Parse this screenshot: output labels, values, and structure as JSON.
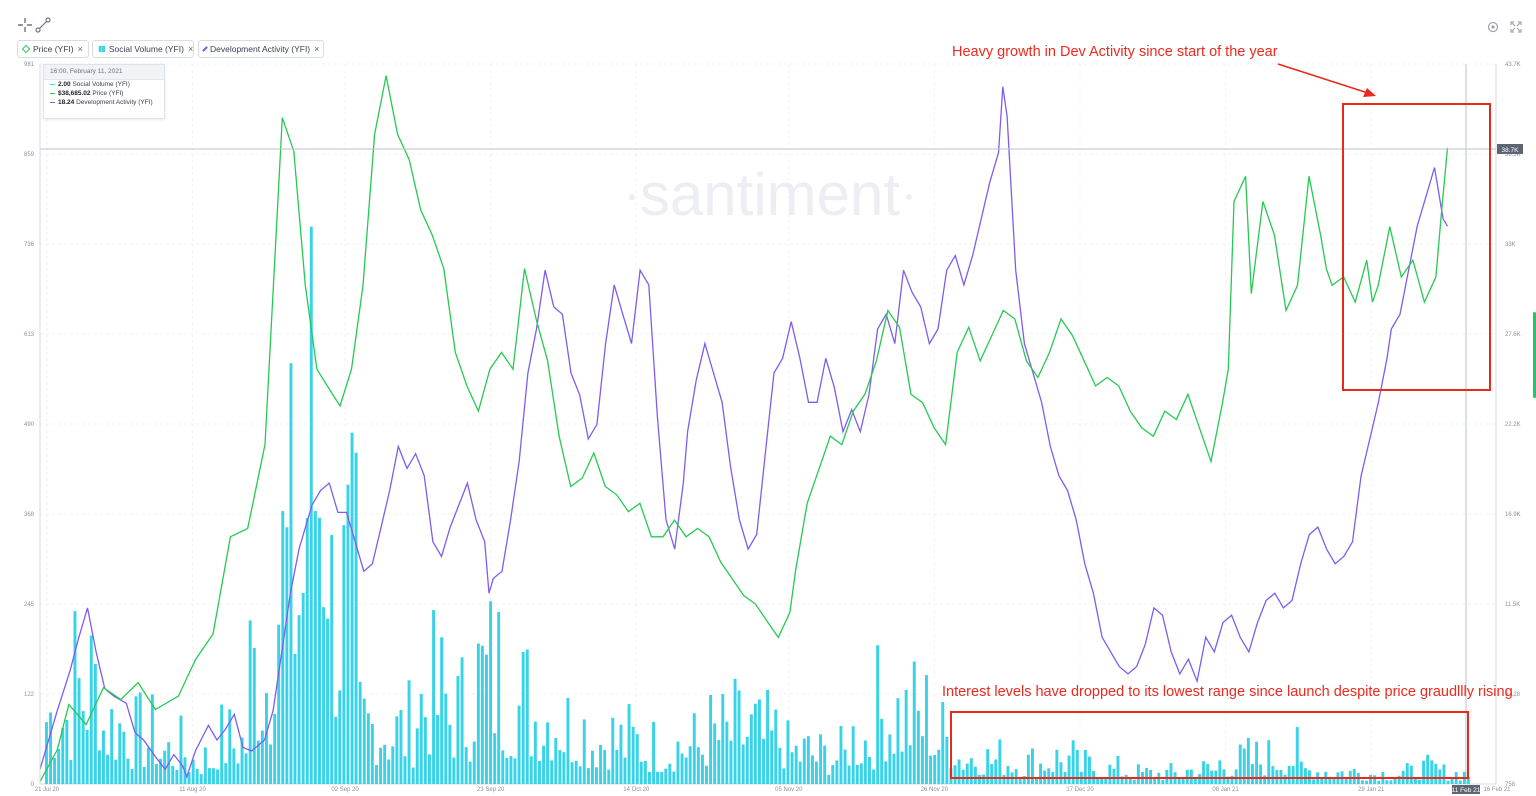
{
  "toolbar": {
    "chips": [
      {
        "label": "Price (YFI)",
        "color": "#26c953"
      },
      {
        "label": "Social Volume (YFI)",
        "color": "#39d3e8"
      },
      {
        "label": "Development Activity (YFI)",
        "color": "#7f5cf0"
      }
    ],
    "close_glyph": "×"
  },
  "watermark": "santiment",
  "tooltip": {
    "datetime": "16:00, February 11, 2021",
    "rows": [
      {
        "value": "2.00",
        "label": "Social Volume (YFI)",
        "color": "#39d3e8"
      },
      {
        "value": "$38,685.02",
        "label": "Price (YFI)",
        "color": "#26c953"
      },
      {
        "value": "18.24",
        "label": "Development Activity (YFI)",
        "color": "#7f5cf0"
      }
    ]
  },
  "annotations": {
    "top": "Heavy growth in Dev Activity since start of the year",
    "bottom": "Interest levels have dropped to its lowest range since launch despite price graudllly rising",
    "color": "#ee2a1e"
  },
  "chart_data": {
    "type": "line",
    "x_ticks": [
      "21 Jul 20",
      "11 Aug 20",
      "02 Sep 20",
      "23 Sep 20",
      "14 Oct 20",
      "05 Nov 20",
      "26 Nov 20",
      "17 Dec 20",
      "08 Jan 21",
      "29 Jan 21",
      "16 Feb 21"
    ],
    "x_highlight": "11 Feb 21",
    "left_axis_ticks": [
      "0",
      "122",
      "245",
      "368",
      "490",
      "613",
      "736",
      "859",
      "981"
    ],
    "right_axis_ticks": [
      "758",
      "6.128",
      "11.5K",
      "16.9K",
      "22.2K",
      "27.6K",
      "33K",
      "38.3K",
      "43.7K"
    ],
    "right_axis_marker": "38.7K",
    "ylim_left": [
      0,
      981
    ],
    "ylim_right": [
      758,
      43700
    ],
    "grid": true,
    "series": [
      {
        "name": "Price (YFI)",
        "axis": "right",
        "color": "#26c953",
        "points": [
          [
            0,
            900
          ],
          [
            6,
            2800
          ],
          [
            10,
            5500
          ],
          [
            16,
            4300
          ],
          [
            22,
            6500
          ],
          [
            28,
            5800
          ],
          [
            34,
            6800
          ],
          [
            40,
            5200
          ],
          [
            48,
            6000
          ],
          [
            54,
            8200
          ],
          [
            60,
            9700
          ],
          [
            66,
            15500
          ],
          [
            72,
            16000
          ],
          [
            78,
            21000
          ],
          [
            84,
            40500
          ],
          [
            88,
            38500
          ],
          [
            92,
            30500
          ],
          [
            96,
            25500
          ],
          [
            100,
            24400
          ],
          [
            104,
            23300
          ],
          [
            108,
            25500
          ],
          [
            112,
            30500
          ],
          [
            116,
            39500
          ],
          [
            120,
            43000
          ],
          [
            124,
            39500
          ],
          [
            128,
            38000
          ],
          [
            132,
            35000
          ],
          [
            136,
            33500
          ],
          [
            140,
            31500
          ],
          [
            144,
            26500
          ],
          [
            148,
            24500
          ],
          [
            152,
            23000
          ],
          [
            156,
            25500
          ],
          [
            160,
            26500
          ],
          [
            164,
            25500
          ],
          [
            168,
            31500
          ],
          [
            172,
            28500
          ],
          [
            176,
            26000
          ],
          [
            180,
            21500
          ],
          [
            184,
            18500
          ],
          [
            188,
            19000
          ],
          [
            192,
            20500
          ],
          [
            196,
            18500
          ],
          [
            200,
            18000
          ],
          [
            204,
            17000
          ],
          [
            208,
            17500
          ],
          [
            212,
            15500
          ],
          [
            216,
            15500
          ],
          [
            220,
            16500
          ],
          [
            224,
            15500
          ],
          [
            228,
            16000
          ],
          [
            232,
            15500
          ],
          [
            236,
            14000
          ],
          [
            240,
            13000
          ],
          [
            244,
            12000
          ],
          [
            248,
            11500
          ],
          [
            252,
            10500
          ],
          [
            256,
            9500
          ],
          [
            260,
            11000
          ],
          [
            262,
            13500
          ],
          [
            266,
            17500
          ],
          [
            270,
            19500
          ],
          [
            274,
            21500
          ],
          [
            278,
            21000
          ],
          [
            282,
            23000
          ],
          [
            286,
            24000
          ],
          [
            290,
            26000
          ],
          [
            294,
            29000
          ],
          [
            298,
            28000
          ],
          [
            302,
            24000
          ],
          [
            306,
            23500
          ],
          [
            310,
            22000
          ],
          [
            314,
            21000
          ],
          [
            318,
            26500
          ],
          [
            322,
            28000
          ],
          [
            326,
            26000
          ],
          [
            330,
            27500
          ],
          [
            334,
            29000
          ],
          [
            338,
            28500
          ],
          [
            342,
            26000
          ],
          [
            346,
            25000
          ],
          [
            350,
            26500
          ],
          [
            354,
            28500
          ],
          [
            358,
            27500
          ],
          [
            362,
            26000
          ],
          [
            366,
            24500
          ],
          [
            370,
            25000
          ],
          [
            374,
            24500
          ],
          [
            378,
            23000
          ],
          [
            382,
            22000
          ],
          [
            386,
            21500
          ],
          [
            390,
            23000
          ],
          [
            394,
            22500
          ],
          [
            398,
            24000
          ],
          [
            402,
            22000
          ],
          [
            406,
            20000
          ],
          [
            410,
            23500
          ],
          [
            412,
            25500
          ],
          [
            414,
            35500
          ],
          [
            418,
            37000
          ],
          [
            420,
            30000
          ],
          [
            424,
            35500
          ],
          [
            428,
            33500
          ],
          [
            432,
            29000
          ],
          [
            436,
            30500
          ],
          [
            440,
            37000
          ],
          [
            444,
            33500
          ],
          [
            446,
            31500
          ],
          [
            448,
            30500
          ],
          [
            452,
            31000
          ],
          [
            456,
            29500
          ],
          [
            460,
            32000
          ],
          [
            462,
            29500
          ],
          [
            464,
            30500
          ],
          [
            468,
            34000
          ],
          [
            472,
            31000
          ],
          [
            476,
            32000
          ],
          [
            480,
            29500
          ],
          [
            484,
            31000
          ],
          [
            486,
            35000
          ],
          [
            488,
            38700
          ]
        ]
      },
      {
        "name": "Development Activity (YFI)",
        "axis": "left",
        "color": "#7f5cf0",
        "points": [
          [
            0,
            20
          ],
          [
            8,
            100
          ],
          [
            14,
            155
          ],
          [
            18,
            200
          ],
          [
            22,
            240
          ],
          [
            26,
            180
          ],
          [
            30,
            130
          ],
          [
            34,
            120
          ],
          [
            40,
            110
          ],
          [
            44,
            70
          ],
          [
            48,
            60
          ],
          [
            54,
            35
          ],
          [
            58,
            20
          ],
          [
            62,
            40
          ],
          [
            66,
            25
          ],
          [
            68,
            10
          ],
          [
            72,
            45
          ],
          [
            78,
            80
          ],
          [
            82,
            60
          ],
          [
            86,
            75
          ],
          [
            90,
            95
          ],
          [
            94,
            50
          ],
          [
            98,
            45
          ],
          [
            104,
            60
          ],
          [
            108,
            100
          ],
          [
            112,
            180
          ],
          [
            116,
            260
          ],
          [
            120,
            320
          ],
          [
            126,
            380
          ],
          [
            130,
            400
          ],
          [
            134,
            410
          ],
          [
            138,
            370
          ],
          [
            142,
            370
          ],
          [
            146,
            330
          ],
          [
            150,
            290
          ],
          [
            154,
            300
          ],
          [
            158,
            350
          ],
          [
            162,
            400
          ],
          [
            166,
            460
          ],
          [
            170,
            430
          ],
          [
            174,
            450
          ],
          [
            178,
            420
          ],
          [
            182,
            330
          ],
          [
            186,
            310
          ],
          [
            190,
            350
          ],
          [
            194,
            380
          ],
          [
            198,
            410
          ],
          [
            202,
            360
          ],
          [
            206,
            330
          ],
          [
            208,
            260
          ],
          [
            210,
            280
          ],
          [
            214,
            290
          ],
          [
            218,
            360
          ],
          [
            222,
            440
          ],
          [
            226,
            560
          ],
          [
            230,
            620
          ],
          [
            234,
            700
          ],
          [
            238,
            650
          ],
          [
            242,
            640
          ],
          [
            246,
            560
          ],
          [
            250,
            530
          ],
          [
            254,
            470
          ],
          [
            258,
            490
          ],
          [
            262,
            600
          ],
          [
            266,
            680
          ],
          [
            270,
            640
          ],
          [
            274,
            600
          ],
          [
            278,
            700
          ],
          [
            282,
            680
          ],
          [
            286,
            500
          ],
          [
            290,
            360
          ],
          [
            294,
            320
          ],
          [
            298,
            410
          ],
          [
            300,
            480
          ],
          [
            304,
            550
          ],
          [
            308,
            600
          ],
          [
            312,
            560
          ],
          [
            316,
            520
          ],
          [
            320,
            430
          ],
          [
            324,
            360
          ],
          [
            328,
            320
          ],
          [
            332,
            340
          ],
          [
            336,
            450
          ],
          [
            340,
            560
          ],
          [
            344,
            580
          ],
          [
            348,
            630
          ],
          [
            352,
            580
          ],
          [
            356,
            520
          ],
          [
            360,
            520
          ],
          [
            364,
            580
          ],
          [
            368,
            540
          ],
          [
            372,
            480
          ],
          [
            376,
            510
          ],
          [
            380,
            480
          ],
          [
            384,
            530
          ],
          [
            388,
            620
          ],
          [
            392,
            640
          ],
          [
            396,
            600
          ],
          [
            400,
            700
          ],
          [
            404,
            670
          ],
          [
            408,
            650
          ],
          [
            412,
            600
          ],
          [
            416,
            620
          ],
          [
            420,
            700
          ],
          [
            424,
            720
          ],
          [
            428,
            680
          ],
          [
            432,
            720
          ],
          [
            436,
            770
          ],
          [
            440,
            820
          ],
          [
            444,
            860
          ],
          [
            446,
            950
          ],
          [
            448,
            910
          ],
          [
            452,
            700
          ],
          [
            456,
            600
          ],
          [
            460,
            560
          ],
          [
            464,
            520
          ],
          [
            468,
            460
          ],
          [
            472,
            420
          ],
          [
            476,
            400
          ],
          [
            480,
            360
          ],
          [
            484,
            300
          ],
          [
            488,
            260
          ],
          [
            492,
            200
          ],
          [
            496,
            180
          ],
          [
            500,
            160
          ],
          [
            504,
            150
          ],
          [
            508,
            160
          ],
          [
            512,
            190
          ],
          [
            516,
            240
          ],
          [
            520,
            230
          ],
          [
            524,
            180
          ],
          [
            528,
            150
          ],
          [
            532,
            170
          ],
          [
            536,
            140
          ],
          [
            540,
            200
          ],
          [
            544,
            180
          ],
          [
            548,
            220
          ],
          [
            552,
            230
          ],
          [
            556,
            200
          ],
          [
            560,
            180
          ],
          [
            564,
            220
          ],
          [
            568,
            250
          ],
          [
            572,
            260
          ],
          [
            576,
            240
          ],
          [
            580,
            250
          ],
          [
            584,
            300
          ],
          [
            588,
            340
          ],
          [
            592,
            350
          ],
          [
            596,
            320
          ],
          [
            600,
            300
          ],
          [
            604,
            310
          ],
          [
            608,
            330
          ],
          [
            612,
            420
          ],
          [
            616,
            470
          ],
          [
            620,
            520
          ],
          [
            624,
            580
          ],
          [
            626,
            620
          ],
          [
            630,
            640
          ],
          [
            634,
            700
          ],
          [
            638,
            760
          ],
          [
            642,
            800
          ],
          [
            646,
            840
          ],
          [
            650,
            770
          ],
          [
            652,
            760
          ]
        ]
      },
      {
        "name": "Social Volume (YFI)",
        "axis": "left",
        "color": "#39d3e8",
        "type": "bar",
        "weekly_max": [
          200,
          280,
          170,
          130,
          95,
          70,
          120,
          320,
          610,
          960,
          500,
          170,
          150,
          240,
          200,
          300,
          230,
          200,
          160,
          130,
          120,
          100,
          110,
          140,
          150,
          130,
          90,
          80,
          130,
          200,
          190,
          130,
          80,
          70,
          60,
          70,
          50,
          40,
          30,
          30,
          40,
          60,
          70,
          80,
          40,
          35,
          30,
          30,
          40,
          30
        ]
      }
    ]
  }
}
